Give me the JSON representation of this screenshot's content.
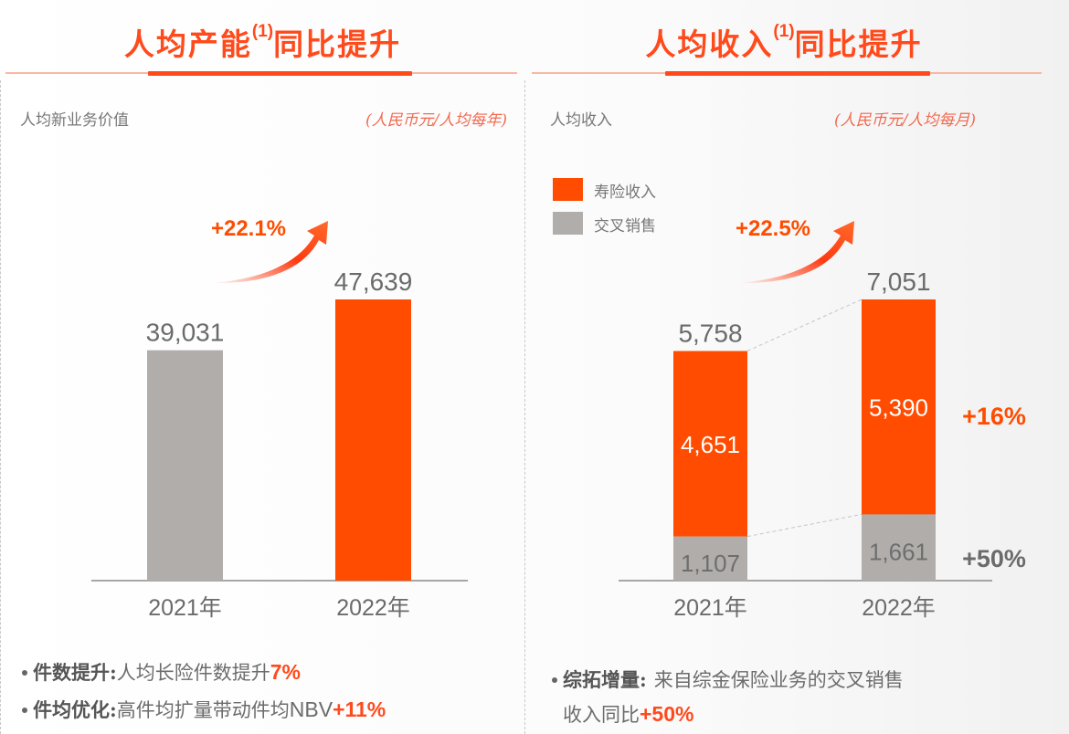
{
  "colors": {
    "accent": "#ff4c00",
    "grey_bar": "#b1adab",
    "text_grey": "#6b6b6b",
    "arrow": "#ff3a10"
  },
  "left": {
    "title_main_a": "人均产能",
    "title_sup": "(1)",
    "title_main_b": "同比提升",
    "subtitle": "人均新业务价值",
    "unit": "(人民币元/人均每年)",
    "growth_label": "+22.1%",
    "bullets": [
      {
        "head": "件数提升:",
        "text": "人均长险件数提升",
        "highlight": "7%"
      },
      {
        "head": "件均优化:",
        "text": "高件均扩量带动件均",
        "latin": "NBV",
        "highlight": "+11%"
      }
    ]
  },
  "right": {
    "title_main_a": "人均收入",
    "title_sup": "(1)",
    "title_main_b": "同比提升",
    "subtitle": "人均收入",
    "unit": "(人民币元/人均每月)",
    "growth_label": "+22.5%",
    "legend": [
      {
        "label": "寿险收入",
        "color": "#ff4c00"
      },
      {
        "label": "交叉销售",
        "color": "#b1adab"
      }
    ],
    "segment_growth": [
      {
        "label": "+16%",
        "color": "#ff4c00"
      },
      {
        "label": "+50%",
        "color": "#6b6b6b"
      }
    ],
    "bullets": [
      {
        "head": "综拓增量:",
        "text": "来自综金保险业务的交叉销售",
        "text2": "收入同比",
        "highlight": "+50%"
      }
    ]
  },
  "chart_data": [
    {
      "type": "bar",
      "title": "人均新业务价值",
      "unit": "(人民币元/人均每年)",
      "categories": [
        "2021年",
        "2022年"
      ],
      "values": [
        39031,
        47639
      ],
      "value_labels": [
        "39,031",
        "47,639"
      ],
      "bar_colors": [
        "#b1adab",
        "#ff4c00"
      ],
      "annotation": "+22.1%",
      "xlabel": "",
      "ylabel": "",
      "ylim": [
        0,
        70000
      ],
      "grid": false
    },
    {
      "type": "bar",
      "stacked": true,
      "title": "人均收入",
      "unit": "(人民币元/人均每月)",
      "categories": [
        "2021年",
        "2022年"
      ],
      "series": [
        {
          "name": "交叉销售",
          "values": [
            1107,
            1661
          ],
          "labels": [
            "1,107",
            "1,661"
          ],
          "color": "#b1adab"
        },
        {
          "name": "寿险收入",
          "values": [
            4651,
            5390
          ],
          "labels": [
            "4,651",
            "5,390"
          ],
          "color": "#ff4c00"
        }
      ],
      "totals": [
        5758,
        7051
      ],
      "total_labels": [
        "5,758",
        "7,051"
      ],
      "annotation": "+22.5%",
      "legend": "top-left",
      "xlabel": "",
      "ylabel": "",
      "ylim": [
        0,
        8725
      ],
      "grid": false
    }
  ]
}
